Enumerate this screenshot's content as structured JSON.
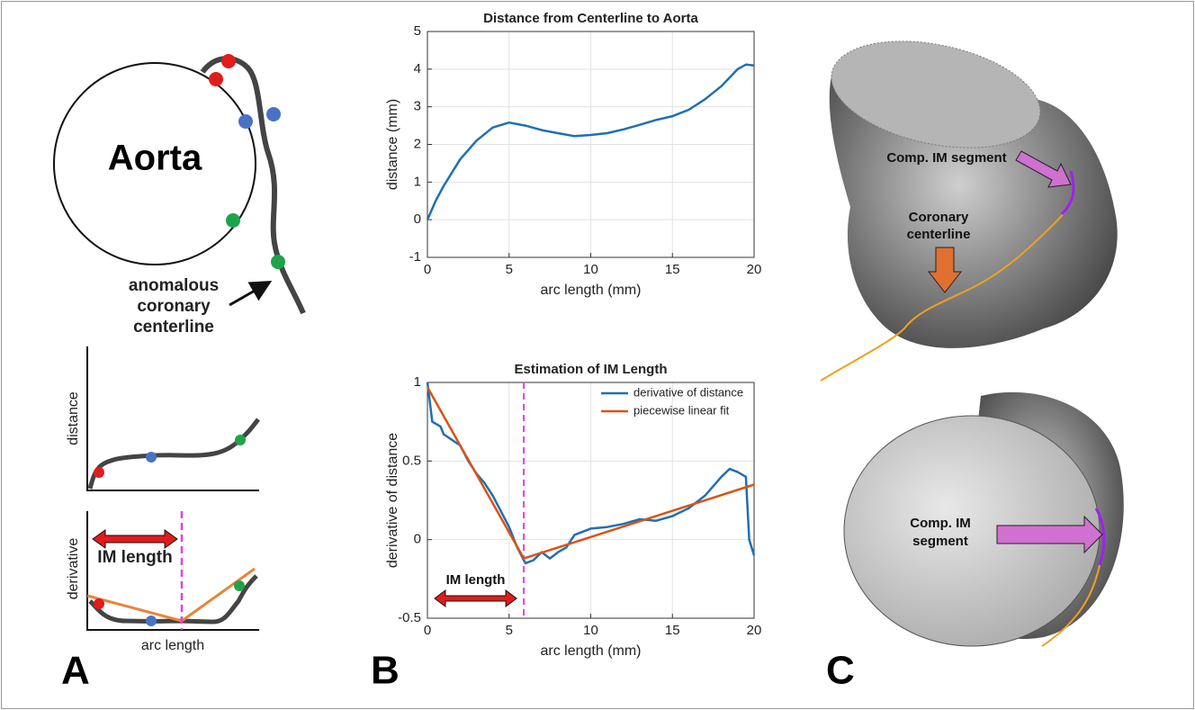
{
  "panels": {
    "A": {
      "label": "A",
      "aorta": "Aorta",
      "centerline": [
        "anomalous",
        "coronary",
        "centerline"
      ],
      "distance_axis": "distance",
      "derivative_axis": "derivative",
      "im_length": "IM length",
      "x_axis": "arc length"
    },
    "B": {
      "label": "B"
    },
    "C": {
      "label": "C",
      "top_im": "Comp. IM segment",
      "coronary": [
        "Coronary",
        "centerline"
      ],
      "bottom_im": [
        "Comp. IM",
        "segment"
      ]
    }
  },
  "chart_data": [
    {
      "type": "line",
      "title": "Distance from Centerline to Aorta",
      "x_label": "arc length (mm)",
      "y_label": "distance (mm)",
      "x": [
        0,
        0.5,
        1,
        2,
        3,
        4,
        5,
        6,
        7,
        8,
        9,
        10,
        11,
        12,
        13,
        14,
        15,
        16,
        17,
        18,
        19,
        19.5,
        20
      ],
      "values": [
        0,
        0.5,
        0.9,
        1.6,
        2.1,
        2.45,
        2.58,
        2.5,
        2.38,
        2.3,
        2.22,
        2.25,
        2.3,
        2.4,
        2.52,
        2.65,
        2.75,
        2.92,
        3.2,
        3.55,
        4.0,
        4.12,
        4.1
      ],
      "color": "#1f6fb4",
      "xlim": [
        0,
        20
      ],
      "ylim": [
        -1,
        5
      ],
      "xticks": [
        0,
        5,
        10,
        15,
        20
      ],
      "yticks": [
        -1,
        0,
        1,
        2,
        3,
        4,
        5
      ],
      "grid": true
    },
    {
      "type": "line",
      "title": "Estimation of IM Length",
      "x_label": "arc length (mm)",
      "y_label": "derivative of distance",
      "series": [
        {
          "name": "derivative of distance",
          "color": "#1f6fb4",
          "x": [
            0,
            0.3,
            0.8,
            1,
            2,
            2.5,
            3,
            3.5,
            4,
            4.5,
            5,
            5.5,
            6,
            6.5,
            7,
            7.5,
            8,
            8.5,
            9,
            10,
            11,
            12,
            13,
            14,
            15,
            16,
            17,
            18,
            18.5,
            19,
            19.5,
            19.7,
            20
          ],
          "values": [
            1,
            0.75,
            0.72,
            0.67,
            0.6,
            0.5,
            0.42,
            0.36,
            0.28,
            0.18,
            0.08,
            -0.05,
            -0.15,
            -0.13,
            -0.08,
            -0.12,
            -0.08,
            -0.05,
            0.03,
            0.07,
            0.08,
            0.1,
            0.13,
            0.12,
            0.15,
            0.2,
            0.28,
            0.4,
            0.45,
            0.43,
            0.4,
            0,
            -0.1
          ]
        },
        {
          "name": "piecewise linear fit",
          "color": "#d95319",
          "x": [
            0,
            5.9,
            20
          ],
          "values": [
            0.97,
            -0.12,
            0.35
          ]
        }
      ],
      "vline": {
        "x": 5.9,
        "color": "#e040e0"
      },
      "annotation": "IM length",
      "legend": "upper-right",
      "xlim": [
        0,
        20
      ],
      "ylim": [
        -0.5,
        1
      ],
      "xticks": [
        0,
        5,
        10,
        15,
        20
      ],
      "yticks": [
        -0.5,
        0,
        0.5,
        1
      ],
      "grid": true
    }
  ]
}
